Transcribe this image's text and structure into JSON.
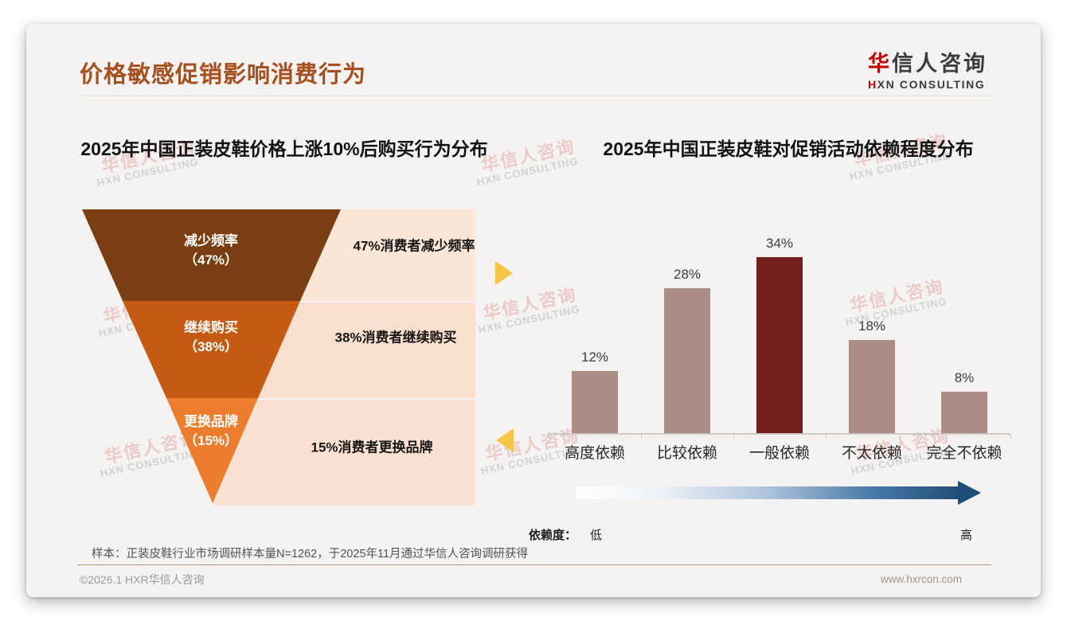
{
  "page": {
    "title": "价格敏感促销影响消费行为",
    "footnote": "样本：正装皮鞋行业市场调研样本量N=1262，于2025年11月通过华信人咨询调研获得",
    "copyright": "©2026.1 HXR华信人咨询",
    "website": "www.hxrcon.com"
  },
  "logo": {
    "cn_first": "华",
    "cn_rest": "信人咨询",
    "en_first": "H",
    "en_rest": "XN CONSULTING"
  },
  "watermark": {
    "cn": "华信人咨询",
    "en": "HXN CONSULTING"
  },
  "chart_data": [
    {
      "type": "funnel",
      "title": "2025年中国正装皮鞋价格上涨10%后购买行为分布",
      "categories": [
        "减少频率",
        "继续购买",
        "更换品牌"
      ],
      "values": [
        47,
        38,
        15
      ],
      "segment_labels_line1": [
        "减少频率",
        "继续购买",
        "更换品牌"
      ],
      "segment_labels_line2": [
        "（47%）",
        "（38%）",
        "（15%）"
      ],
      "side_labels": [
        "47%消费者减少频率",
        "38%消费者继续购买",
        "15%消费者更换品牌"
      ],
      "colors": [
        "#7B3E12",
        "#C45A14",
        "#EC7D2F"
      ]
    },
    {
      "type": "bar",
      "title": "2025年中国正装皮鞋对促销活动依赖程度分布",
      "categories": [
        "高度依赖",
        "比较依赖",
        "一般依赖",
        "不太依赖",
        "完全不依赖"
      ],
      "values": [
        12,
        28,
        34,
        18,
        8
      ],
      "value_labels": [
        "12%",
        "28%",
        "34%",
        "18%",
        "8%"
      ],
      "bar_color": "#AB8E85",
      "highlight_color": "#741D1D",
      "highlight_index": 2,
      "ylim": [
        0,
        40
      ],
      "grid": false,
      "legend": "none",
      "dependency_scale": {
        "label": "依赖度：",
        "low": "低",
        "high": "高"
      }
    }
  ]
}
